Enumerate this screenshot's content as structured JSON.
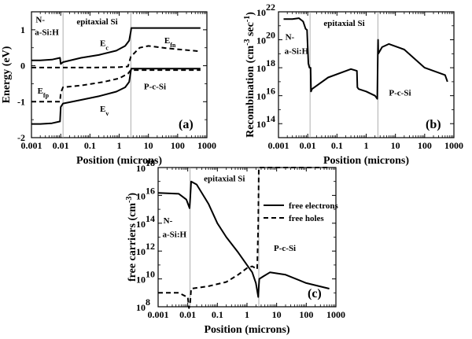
{
  "chart_data": [
    {
      "id": "a",
      "type": "line",
      "panel_label": "(a)",
      "xlabel": "Position (microns)",
      "ylabel": "Energy (eV)",
      "xscale": "log",
      "xlim": [
        0.001,
        1000
      ],
      "ylim": [
        -2,
        1.5
      ],
      "xticks": [
        0.001,
        0.01,
        0.1,
        1,
        10,
        100,
        1000
      ],
      "xtick_labels": [
        "0.001",
        "0.01",
        "0.1",
        "1",
        "10",
        "100",
        "1000"
      ],
      "yticks": [
        -2,
        -1,
        0,
        1
      ],
      "ytick_labels": [
        "-2",
        "-1",
        "0",
        "1"
      ],
      "region_lines": [
        0.012,
        2.5
      ],
      "annotations": [
        {
          "text": "N-",
          "x": 0.0014,
          "y": 1.2
        },
        {
          "text": "a-Si:H",
          "x": 0.0013,
          "y": 0.85
        },
        {
          "text": "epitaxial Si",
          "x": 0.035,
          "y": 1.15
        },
        {
          "text": "P-c-Si",
          "x": 7,
          "y": -0.65
        },
        {
          "text": "E",
          "sub": "c",
          "x": 0.22,
          "y": 0.55
        },
        {
          "text": "E",
          "sub": "fn",
          "x": 35,
          "y": 0.62
        },
        {
          "text": "E",
          "sub": "fp",
          "x": 0.0016,
          "y": -0.78
        },
        {
          "text": "E",
          "sub": "v",
          "x": 0.22,
          "y": -1.28
        }
      ],
      "series": [
        {
          "label": "E_c",
          "style": "solid",
          "x": [
            0.001,
            0.002,
            0.005,
            0.0095,
            0.01,
            0.012,
            0.05,
            0.2,
            0.8,
            1.6,
            2.2,
            2.5,
            2.6,
            10,
            100,
            600
          ],
          "y": [
            0.15,
            0.15,
            0.17,
            0.22,
            0.05,
            0.1,
            0.22,
            0.3,
            0.42,
            0.55,
            0.7,
            0.95,
            1.05,
            1.05,
            1.05,
            1.05
          ]
        },
        {
          "label": "E_v",
          "style": "solid",
          "x": [
            0.001,
            0.002,
            0.005,
            0.0095,
            0.01,
            0.012,
            0.05,
            0.2,
            0.8,
            1.6,
            2.2,
            2.5,
            2.6,
            10,
            100,
            600
          ],
          "y": [
            -1.62,
            -1.62,
            -1.6,
            -1.55,
            -1.15,
            -1.05,
            -0.95,
            -0.85,
            -0.72,
            -0.6,
            -0.45,
            -0.15,
            -0.08,
            -0.08,
            -0.08,
            -0.08
          ]
        },
        {
          "label": "E_fn",
          "style": "dashed",
          "x": [
            0.001,
            0.01,
            0.1,
            1,
            2.0,
            2.5,
            5,
            10,
            50,
            600
          ],
          "y": [
            -0.05,
            -0.05,
            -0.05,
            -0.04,
            -0.02,
            0.25,
            0.5,
            0.55,
            0.48,
            0.4
          ]
        },
        {
          "label": "E_fp",
          "style": "dashed",
          "x": [
            0.001,
            0.0095,
            0.01,
            0.012,
            0.05,
            0.3,
            1,
            2,
            2.5,
            10,
            600
          ],
          "y": [
            -1.0,
            -1.0,
            -0.75,
            -0.6,
            -0.55,
            -0.45,
            -0.35,
            -0.22,
            -0.12,
            -0.12,
            -0.12
          ]
        }
      ]
    },
    {
      "id": "b",
      "type": "line",
      "panel_label": "(b)",
      "xlabel": "Position (microns)",
      "ylabel": "Recombination (cm-3 sec-1)",
      "xscale": "log",
      "yscale": "log",
      "xlim": [
        0.001,
        1000
      ],
      "ylim": [
        10000000000000.0,
        1e+22
      ],
      "xticks": [
        0.001,
        0.01,
        0.1,
        1,
        10,
        100,
        1000
      ],
      "xtick_labels": [
        "0.001",
        "0.01",
        "0.1",
        "1",
        "10",
        "100",
        "1000"
      ],
      "ytick_exponents": [
        14,
        16,
        18,
        20,
        22
      ],
      "region_lines": [
        0.012,
        2.5
      ],
      "annotations": [
        {
          "text": "N-",
          "x": 0.0017,
          "y": 1e+20
        },
        {
          "text": "a-Si:H",
          "x": 0.0016,
          "y": 1e+19
        },
        {
          "text": "epitaxial Si",
          "x": 0.035,
          "y": 1e+21
        },
        {
          "text": "P-c-Si",
          "x": 6,
          "y": 1e+16
        }
      ],
      "series": [
        {
          "label": "recombination",
          "style": "solid",
          "x": [
            0.0015,
            0.003,
            0.005,
            0.007,
            0.0085,
            0.0095,
            0.0105,
            0.0115,
            0.0125,
            0.013,
            0.014,
            0.05,
            0.3,
            0.48,
            0.5,
            0.55,
            1,
            2,
            2.4,
            2.5,
            2.55,
            2.6,
            3.5,
            6,
            20,
            100,
            500,
            600
          ],
          "y": [
            3e+21,
            3e+21,
            3.5e+21,
            2e+21,
            6e+20,
            5e+20,
            2e+18,
            1e+18,
            1e+18,
            2e+16,
            3e+16,
            2e+17,
            8e+17,
            6e+17,
            4e+16,
            3e+16,
            2e+16,
            1e+16,
            6000000000000000.0,
            1e+19,
            1e+20,
            1e+19,
            3e+19,
            5e+19,
            2e+19,
            1e+18,
            3e+17,
            1e+17
          ]
        }
      ]
    },
    {
      "id": "c",
      "type": "line",
      "panel_label": "(c)",
      "xlabel": "Position (microns)",
      "ylabel": "free carriers (cm-3)",
      "xscale": "log",
      "yscale": "log",
      "xlim": [
        0.001,
        1000
      ],
      "ylim": [
        100000000.0,
        1e+18
      ],
      "xticks": [
        0.001,
        0.01,
        0.1,
        1,
        10,
        100,
        1000
      ],
      "xtick_labels": [
        "0.001",
        "0.01",
        "0.1",
        "1",
        "10",
        "100",
        "1000"
      ],
      "ytick_exponents": [
        8,
        10,
        12,
        14,
        16,
        18
      ],
      "region_lines": [
        0.012,
        2.5
      ],
      "legend": {
        "placement": "top-right"
      },
      "annotations": [
        {
          "text": "N-",
          "x": 0.0015,
          "y": 100000000000000.0
        },
        {
          "text": "a-Si:H",
          "x": 0.0014,
          "y": 10000000000000.0
        },
        {
          "text": "epitaxial Si",
          "x": 0.035,
          "y": 1e+17
        },
        {
          "text": "P-c-Si",
          "x": 8,
          "y": 1000000000000.0
        }
      ],
      "series": [
        {
          "name": "free electrons",
          "style": "solid",
          "x": [
            0.001,
            0.005,
            0.009,
            0.0115,
            0.012,
            0.013,
            0.02,
            0.05,
            0.1,
            0.2,
            0.5,
            1,
            1.5,
            2.0,
            2.4,
            2.5,
            2.6,
            3.5,
            6,
            20,
            100,
            600
          ],
          "y": [
            1.5e+16,
            1.3e+16,
            5000000000000000.0,
            1200000000000000.0,
            4000000000000000.0,
            1e+17,
            6e+16,
            2500000000000000.0,
            100000000000000.0,
            10000000000000.0,
            800000000000.0,
            100000000000.0,
            30000000000.0,
            5000000000.0,
            500000000.0,
            3000000000.0,
            10000000000.0,
            15000000000.0,
            30000000000.0,
            20000000000.0,
            5000000000.0,
            2000000000.0
          ]
        },
        {
          "name": "free holes",
          "style": "dashed",
          "x": [
            0.001,
            0.005,
            0.0095,
            0.01,
            0.011,
            0.012,
            0.013,
            0.05,
            0.2,
            0.5,
            1,
            1.5,
            2.2,
            2.4,
            2.5,
            2.6,
            10,
            100,
            600
          ],
          "y": [
            1000000000.0,
            1000000000.0,
            500000000.0,
            500000000.0,
            80000000.0,
            150000000.0,
            2000000000.0,
            3000000000.0,
            6000000000.0,
            20000000000.0,
            60000000000.0,
            80000000000.0,
            50000000000.0,
            100000000000000.0,
            1e+18,
            1e+18,
            1e+18,
            1e+18,
            1e+18
          ]
        }
      ]
    }
  ]
}
